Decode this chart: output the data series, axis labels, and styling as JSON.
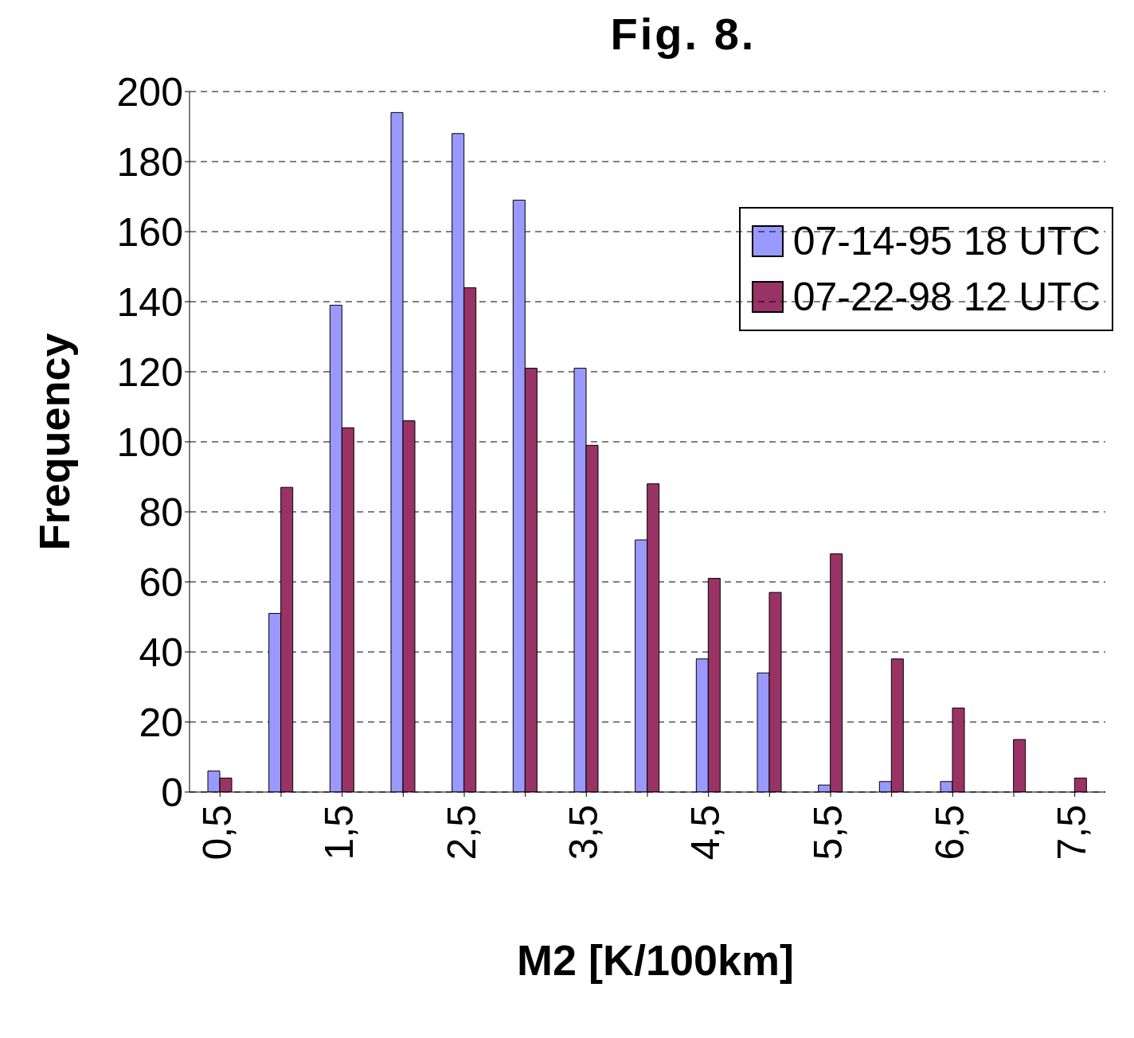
{
  "chart_data": {
    "type": "bar",
    "title": "Fig. 8.",
    "xlabel": "M2 [K/100km]",
    "ylabel": "Frequency",
    "categories": [
      "0,5",
      null,
      "1,5",
      null,
      "2,5",
      null,
      "3,5",
      null,
      "4,5",
      null,
      "5,5",
      null,
      "6,5",
      null,
      "7,5"
    ],
    "series": [
      {
        "name": "07-14-95 18 UTC",
        "color": "#9999ff",
        "values": [
          6,
          51,
          139,
          194,
          188,
          169,
          121,
          72,
          38,
          34,
          2,
          3,
          3,
          0,
          0
        ]
      },
      {
        "name": "07-22-98 12 UTC",
        "color": "#993366",
        "values": [
          4,
          87,
          104,
          106,
          144,
          121,
          99,
          88,
          61,
          57,
          68,
          38,
          24,
          15,
          4
        ]
      }
    ],
    "ylim": [
      0,
      200
    ],
    "yticks": [
      0,
      20,
      40,
      60,
      80,
      100,
      120,
      140,
      160,
      180,
      200
    ],
    "grid": "y",
    "legend": "top right"
  }
}
